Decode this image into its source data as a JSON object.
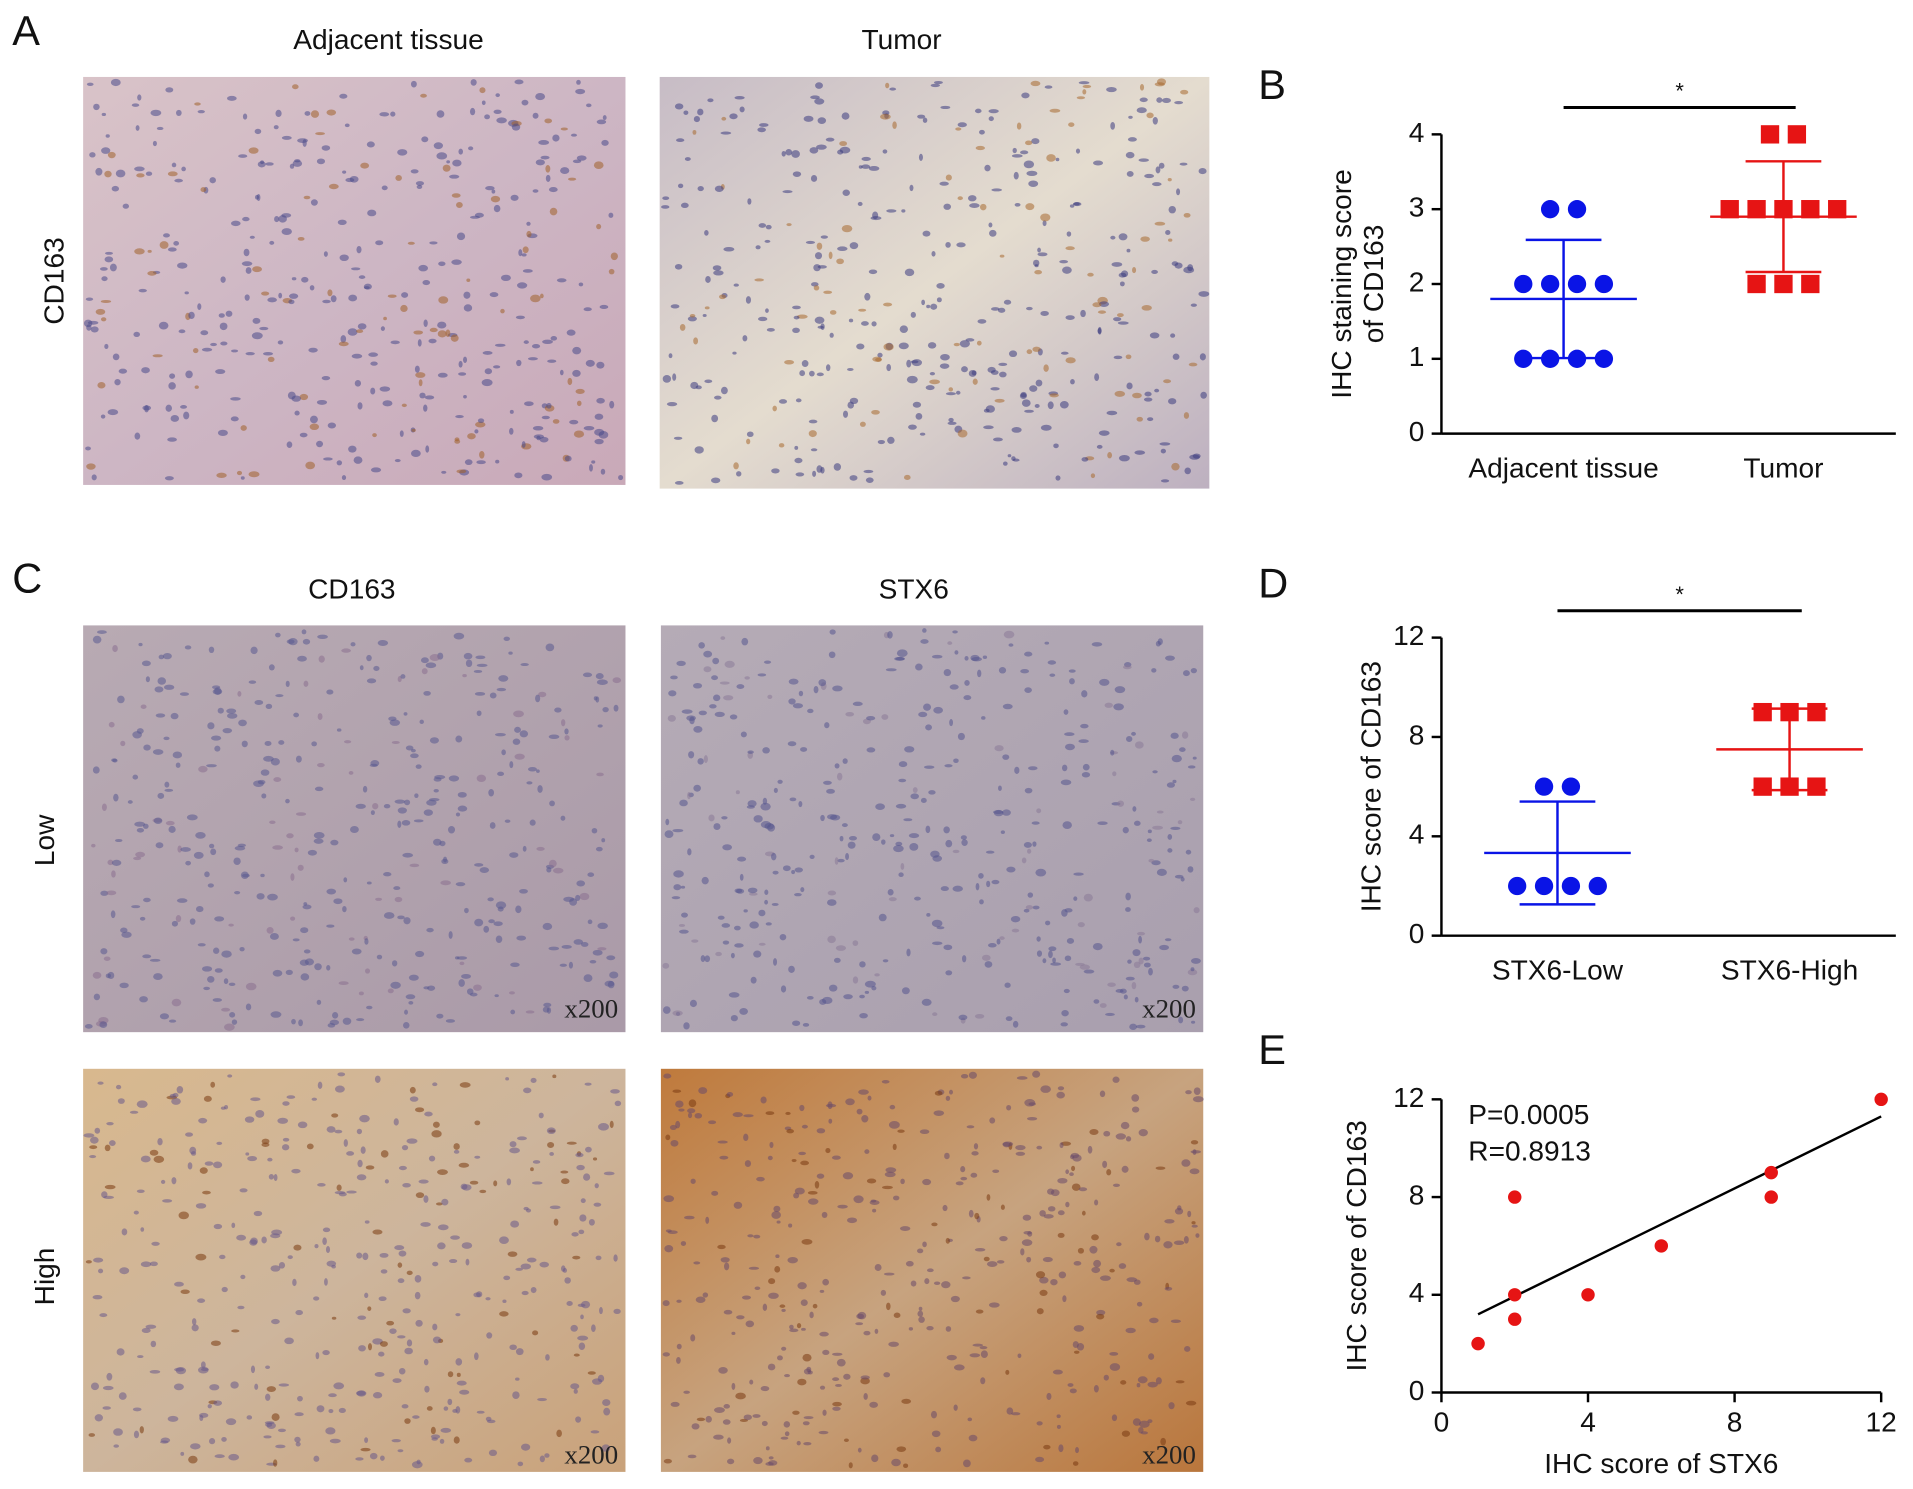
{
  "figure": {
    "panel_labels": [
      "A",
      "B",
      "C",
      "D",
      "E"
    ],
    "a_columns": [
      "Adjacent tissue",
      "Tumor"
    ],
    "a_row": "CD163",
    "c_columns": [
      "CD163",
      "STX6"
    ],
    "c_rows": [
      "Low",
      "High"
    ],
    "magnification": "x200"
  },
  "chart_data": [
    {
      "type": "dotplot",
      "ylabel": [
        "IHC staining score",
        "of CD163"
      ],
      "categories": [
        "Adjacent tissue",
        "Tumor"
      ],
      "groups": [
        {
          "color": "#0a14e6",
          "marker": "circle",
          "values": [
            3,
            3,
            2,
            2,
            2,
            2,
            1,
            1,
            1,
            1
          ],
          "mean": 1.8,
          "sd": 0.79
        },
        {
          "color": "#e61414",
          "marker": "square",
          "values": [
            4,
            4,
            3,
            3,
            3,
            3,
            3,
            2,
            2,
            2
          ],
          "mean": 2.9,
          "sd": 0.74
        }
      ],
      "ylim": [
        0,
        4
      ],
      "yticks": [
        0,
        1,
        2,
        3,
        4
      ],
      "significance": "*"
    },
    {
      "type": "dotplot",
      "ylabel": [
        "IHC score of CD163"
      ],
      "categories": [
        "STX6-Low",
        "STX6-High"
      ],
      "groups": [
        {
          "color": "#0a14e6",
          "marker": "circle",
          "values": [
            6,
            6,
            2,
            2,
            2,
            2
          ],
          "mean": 3.33,
          "sd": 2.07
        },
        {
          "color": "#e61414",
          "marker": "square",
          "values": [
            9,
            9,
            9,
            6,
            6,
            6
          ],
          "mean": 7.5,
          "sd": 1.64
        }
      ],
      "ylim": [
        0,
        12
      ],
      "yticks": [
        0,
        4,
        8,
        12
      ],
      "significance": "*"
    },
    {
      "type": "scatter",
      "xlabel": "IHC score of STX6",
      "ylabel": [
        "IHC score of CD163"
      ],
      "x": [
        1,
        2,
        2,
        2,
        4,
        6,
        9,
        9,
        12
      ],
      "values": [
        2,
        8,
        4,
        3,
        4,
        6,
        9,
        8,
        12
      ],
      "color": "#e61414",
      "fit": {
        "x": [
          1,
          12
        ],
        "y": [
          3.2,
          11.3
        ]
      },
      "annotations": [
        "P=0.0005",
        "R=0.8913"
      ],
      "xlim": [
        0,
        12
      ],
      "xticks": [
        0,
        4,
        8,
        12
      ],
      "ylim": [
        0,
        12
      ],
      "yticks": [
        0,
        4,
        8,
        12
      ]
    }
  ]
}
